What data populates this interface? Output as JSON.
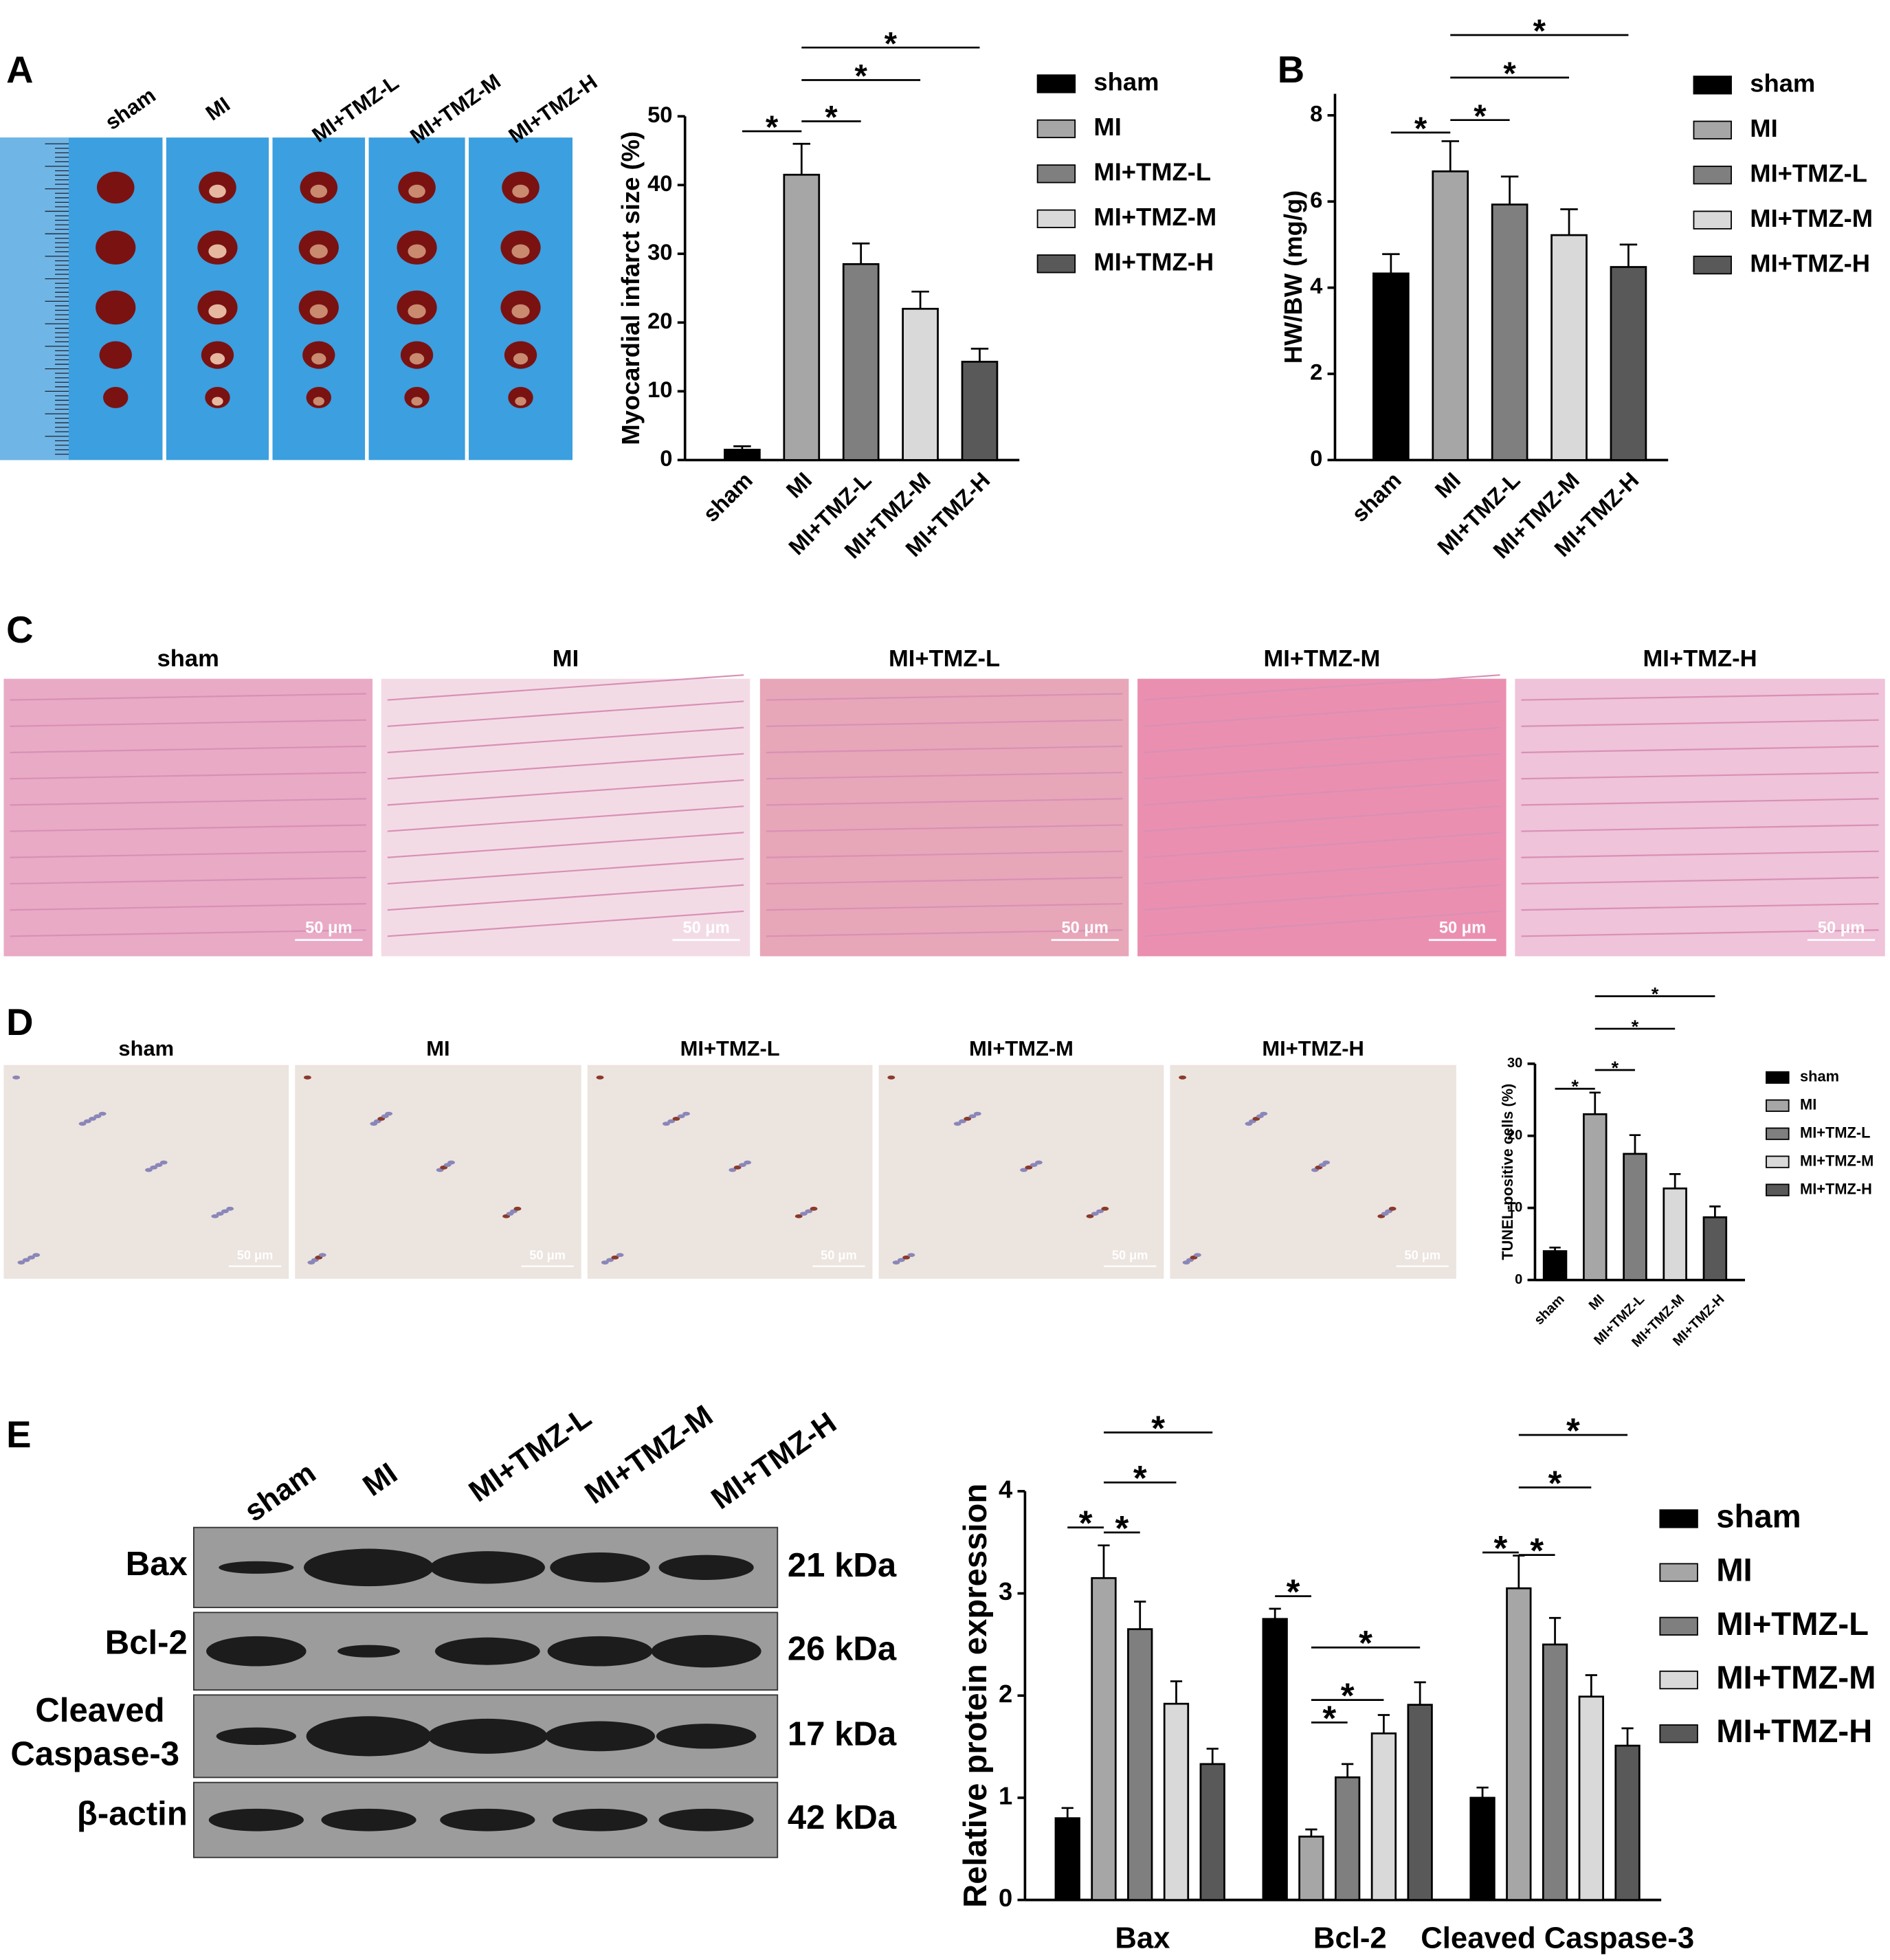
{
  "panels": [
    "A",
    "B",
    "C",
    "D",
    "E"
  ],
  "scale_bar": "50 μm",
  "blot": {
    "proteins": [
      "Bax",
      "Bcl-2",
      [
        "Cleaved",
        "Caspase-3"
      ],
      "β-actin"
    ],
    "sizes": [
      "21 kDa",
      "26 kDa",
      "17 kDa",
      "42 kDa"
    ]
  },
  "chart_data": [
    {
      "type": "bar",
      "ylabel": "Myocardial infarct size (%)",
      "categories": [
        "sham",
        "MI",
        "MI+TMZ-L",
        "MI+TMZ-M",
        "MI+TMZ-H"
      ],
      "values": [
        1.5,
        41.5,
        28.5,
        22,
        14.3
      ],
      "errors": [
        0.5,
        4.5,
        3,
        2.5,
        1.9
      ],
      "colors": [
        "#000000",
        "#a6a6a6",
        "#7f7f7f",
        "#d9d9d9",
        "#595959"
      ],
      "ylim": [
        0,
        50
      ],
      "yticks": [
        0,
        10,
        20,
        30,
        40,
        50
      ],
      "legend": true,
      "comparisons": [
        {
          "text": "*",
          "between": [
            0,
            1
          ]
        },
        {
          "text": "*",
          "between": [
            1,
            2
          ]
        },
        {
          "text": "*",
          "between": [
            1,
            3
          ]
        },
        {
          "text": "*",
          "between": [
            1,
            4
          ]
        }
      ]
    },
    {
      "type": "bar",
      "ylabel": "HW/BW (mg/g)",
      "categories": [
        "sham",
        "MI",
        "MI+TMZ-L",
        "MI+TMZ-M",
        "MI+TMZ-H"
      ],
      "values": [
        4.33,
        6.7,
        5.93,
        5.22,
        4.48
      ],
      "errors": [
        0.45,
        0.7,
        0.65,
        0.6,
        0.52
      ],
      "colors": [
        "#000000",
        "#a6a6a6",
        "#7f7f7f",
        "#d9d9d9",
        "#595959"
      ],
      "ylim": [
        0,
        8.5
      ],
      "yticks": [
        0,
        2,
        4,
        6,
        8
      ],
      "legend": true,
      "comparisons": [
        {
          "text": "*",
          "between": [
            0,
            1
          ]
        },
        {
          "text": "*",
          "between": [
            1,
            2
          ]
        },
        {
          "text": "*",
          "between": [
            1,
            3
          ]
        },
        {
          "text": "*",
          "between": [
            1,
            4
          ]
        }
      ]
    },
    {
      "type": "bar",
      "ylabel": "TUNEL-positive cells (%)",
      "categories": [
        "sham",
        "MI",
        "MI+TMZ-L",
        "MI+TMZ-M",
        "MI+TMZ-H"
      ],
      "values": [
        4,
        23,
        17.5,
        12.7,
        8.7
      ],
      "errors": [
        0.5,
        3,
        2.6,
        2,
        1.5
      ],
      "colors": [
        "#000000",
        "#a6a6a6",
        "#7f7f7f",
        "#d9d9d9",
        "#595959"
      ],
      "ylim": [
        0,
        30
      ],
      "yticks": [
        0,
        10,
        20,
        30
      ],
      "legend": true,
      "comparisons": [
        {
          "text": "*",
          "between": [
            0,
            1
          ]
        },
        {
          "text": "*",
          "between": [
            1,
            2
          ]
        },
        {
          "text": "*",
          "between": [
            1,
            3
          ]
        },
        {
          "text": "*",
          "between": [
            1,
            4
          ]
        }
      ]
    },
    {
      "type": "grouped-bar",
      "ylabel": "Relative protein expression",
      "categories": [
        "Bax",
        "Bcl-2",
        "Cleaved Caspase-3"
      ],
      "series": [
        {
          "name": "sham",
          "color": "#000000",
          "values": [
            0.8,
            2.75,
            1.0
          ],
          "errors": [
            0.1,
            0.1,
            0.1
          ]
        },
        {
          "name": "MI",
          "color": "#a6a6a6",
          "values": [
            3.15,
            0.62,
            3.05
          ],
          "errors": [
            0.32,
            0.07,
            0.32
          ]
        },
        {
          "name": "MI+TMZ-L",
          "color": "#7f7f7f",
          "values": [
            2.65,
            1.2,
            2.5
          ],
          "errors": [
            0.27,
            0.13,
            0.26
          ]
        },
        {
          "name": "MI+TMZ-M",
          "color": "#d9d9d9",
          "values": [
            1.92,
            1.63,
            1.99
          ],
          "errors": [
            0.22,
            0.18,
            0.21
          ]
        },
        {
          "name": "MI+TMZ-H",
          "color": "#595959",
          "values": [
            1.33,
            1.91,
            1.51
          ],
          "errors": [
            0.15,
            0.22,
            0.17
          ]
        }
      ],
      "ylim": [
        0,
        4
      ],
      "yticks": [
        0,
        1,
        2,
        3,
        4
      ],
      "legend": true,
      "comparisons": [
        {
          "text": "*",
          "category": 0,
          "between": [
            0,
            1
          ]
        },
        {
          "text": "*",
          "category": 0,
          "between": [
            1,
            2
          ]
        },
        {
          "text": "*",
          "category": 0,
          "between": [
            1,
            3
          ]
        },
        {
          "text": "*",
          "category": 0,
          "between": [
            1,
            4
          ]
        },
        {
          "text": "*",
          "category": 1,
          "between": [
            0,
            1
          ]
        },
        {
          "text": "*",
          "category": 1,
          "between": [
            1,
            2
          ]
        },
        {
          "text": "*",
          "category": 1,
          "between": [
            1,
            3
          ]
        },
        {
          "text": "*",
          "category": 1,
          "between": [
            1,
            4
          ]
        },
        {
          "text": "*",
          "category": 2,
          "between": [
            0,
            1
          ]
        },
        {
          "text": "*",
          "category": 2,
          "between": [
            1,
            2
          ]
        },
        {
          "text": "*",
          "category": 2,
          "between": [
            1,
            3
          ]
        },
        {
          "text": "*",
          "category": 2,
          "between": [
            1,
            4
          ]
        }
      ]
    }
  ]
}
